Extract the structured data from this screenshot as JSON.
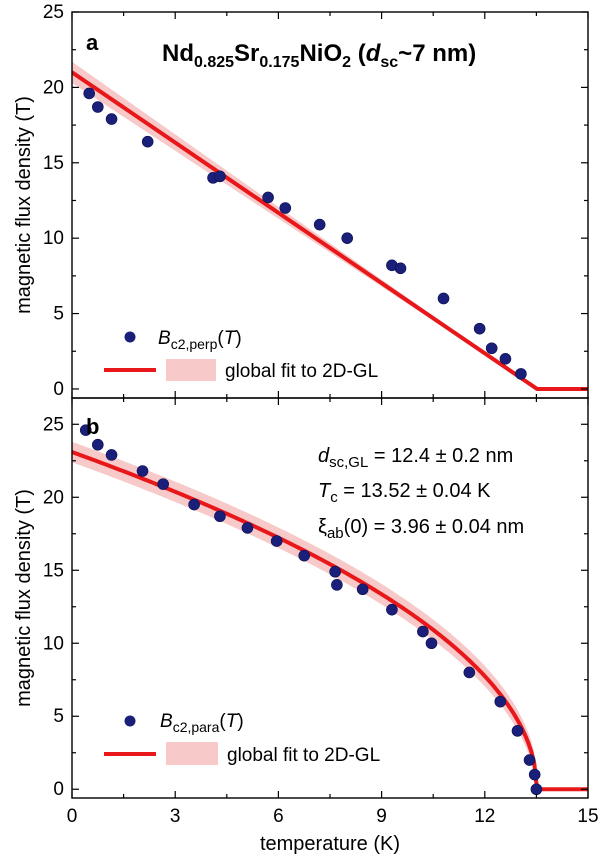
{
  "chart_data": [
    {
      "type": "scatter",
      "panel": "a",
      "title": "Nd0.825Sr0.175NiO2 (dsc~7 nm)",
      "title_parts": {
        "a": "Nd",
        "b": "0.825",
        "c": "Sr",
        "d": "0.175",
        "e": "NiO",
        "f": "2",
        "g": " (",
        "h": "d",
        "i": "sc",
        "j": "~7 nm)"
      },
      "xlabel": "",
      "ylabel": "magnetic flux density (T)",
      "xlim": [
        0,
        15
      ],
      "ylim": [
        -0.6,
        25
      ],
      "yticks": [
        "0",
        "5",
        "10",
        "15",
        "20",
        "25"
      ],
      "series": [
        {
          "name": "Bc2,perp(T)",
          "legend_parts": {
            "b": "B",
            "sub": "c2,perp",
            "open": "(",
            "t": "T",
            "close": ")"
          },
          "kind": "scatter",
          "color": "#1a1f7a",
          "x": [
            0.5,
            0.75,
            1.15,
            2.2,
            4.1,
            4.3,
            5.7,
            6.2,
            7.2,
            8.0,
            9.3,
            9.55,
            10.8,
            11.85,
            12.2,
            12.6,
            13.05
          ],
          "y": [
            19.6,
            18.7,
            17.9,
            16.4,
            14.0,
            14.1,
            12.7,
            12.0,
            10.9,
            10.0,
            8.2,
            8.0,
            6.0,
            4.0,
            2.7,
            2.0,
            1.0
          ]
        },
        {
          "name": "global fit to 2D-GL",
          "kind": "line",
          "color": "#e8171a",
          "band_color": "#f7c9c9",
          "x": [
            0,
            13.52,
            15
          ],
          "y": [
            21.0,
            0,
            0
          ]
        }
      ]
    },
    {
      "type": "scatter",
      "panel": "b",
      "xlabel": "temperature (K)",
      "ylabel": "magnetic flux density (T)",
      "xlim": [
        0,
        15
      ],
      "ylim": [
        -0.6,
        26.8
      ],
      "xticks": [
        "0",
        "3",
        "6",
        "9",
        "12",
        "15"
      ],
      "yticks": [
        "0",
        "5",
        "10",
        "15",
        "20",
        "25"
      ],
      "annotations": [
        {
          "a": "d",
          "sub": "sc,GL",
          "rest": " = 12.4 ± 0.2 nm"
        },
        {
          "a": "T",
          "sub": "c",
          "rest": " = 13.52 ± 0.04 K"
        },
        {
          "a": "ξ",
          "sub": "ab",
          "rest": "(0) = 3.96 ± 0.04 nm"
        }
      ],
      "series": [
        {
          "name": "Bc2,para(T)",
          "legend_parts": {
            "b": "B",
            "sub": "c2,para",
            "open": "(",
            "t": "T",
            "close": ")"
          },
          "kind": "scatter",
          "color": "#1a1f7a",
          "x": [
            0.4,
            0.75,
            1.15,
            2.05,
            2.65,
            3.55,
            4.3,
            5.1,
            5.95,
            6.75,
            7.65,
            7.7,
            8.45,
            9.3,
            10.2,
            10.45,
            11.55,
            12.45,
            12.95,
            13.3,
            13.45,
            13.5
          ],
          "y": [
            24.6,
            23.6,
            22.9,
            21.8,
            20.9,
            19.5,
            18.7,
            17.9,
            17.0,
            16.0,
            14.9,
            14.0,
            13.7,
            12.3,
            10.8,
            10.0,
            8.0,
            6.0,
            4.0,
            2.0,
            1.0,
            0.0
          ]
        },
        {
          "name": "global fit to 2D-GL",
          "kind": "line",
          "color": "#e8171a",
          "band_color": "#f7c9c9",
          "model": "sqrt",
          "B0": 23.1,
          "Tc": 13.52,
          "xmax": 15
        }
      ]
    }
  ]
}
